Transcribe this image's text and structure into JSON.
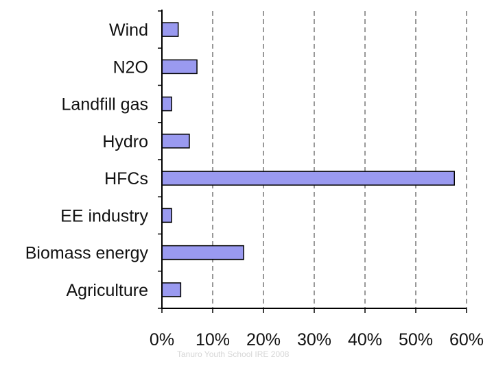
{
  "chart_data": {
    "type": "bar",
    "orientation": "horizontal",
    "categories": [
      "Wind",
      "N2O",
      "Landfill gas",
      "Hydro",
      "HFCs",
      "EE industry",
      "Biomass energy",
      "Agriculture"
    ],
    "values": [
      3.2,
      6.9,
      1.9,
      5.4,
      57.6,
      1.9,
      16.1,
      3.7
    ],
    "value_unit": "%",
    "xlim": [
      0,
      60
    ],
    "x_ticks": [
      "0%",
      "10%",
      "20%",
      "30%",
      "40%",
      "50%",
      "60%"
    ],
    "grid": "vertical dashed",
    "legend": "none",
    "colors": {
      "bar_fill": "#9a9af0",
      "bar_stroke": "#000000",
      "grid": "#555555"
    }
  },
  "watermark": "Tanuro Youth School IRE 2008"
}
